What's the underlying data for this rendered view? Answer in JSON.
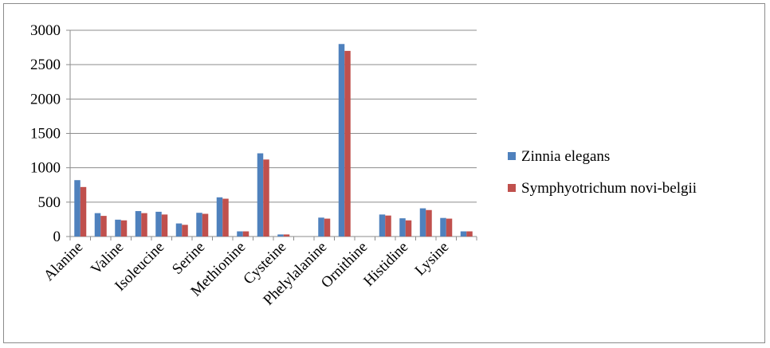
{
  "chart_data": {
    "type": "bar",
    "title": "",
    "xlabel": "",
    "ylabel": "",
    "ylim": [
      0,
      3000
    ],
    "yticks": [
      0,
      500,
      1000,
      1500,
      2000,
      2500,
      3000
    ],
    "grid": true,
    "legend_position": "right",
    "categories": [
      "Alanine",
      "",
      "Valine",
      "",
      "Isoleucine",
      "",
      "Serine",
      "",
      "Methionine",
      "",
      "Cysteine",
      "",
      "Phelylalanine",
      "",
      "Ornithine",
      "",
      "Histidine",
      "",
      "Lysine",
      ""
    ],
    "series": [
      {
        "name": "Zinnia elegans",
        "color": "#4f81bd",
        "values": [
          820,
          340,
          245,
          370,
          360,
          190,
          345,
          570,
          75,
          1210,
          30,
          0,
          275,
          2800,
          0,
          320,
          265,
          410,
          270,
          75
        ]
      },
      {
        "name": "Symphyotrichum novi-belgii",
        "color": "#c0504d",
        "values": [
          720,
          300,
          235,
          340,
          320,
          170,
          330,
          550,
          75,
          1120,
          30,
          0,
          260,
          2700,
          0,
          305,
          235,
          385,
          260,
          75
        ]
      }
    ]
  }
}
